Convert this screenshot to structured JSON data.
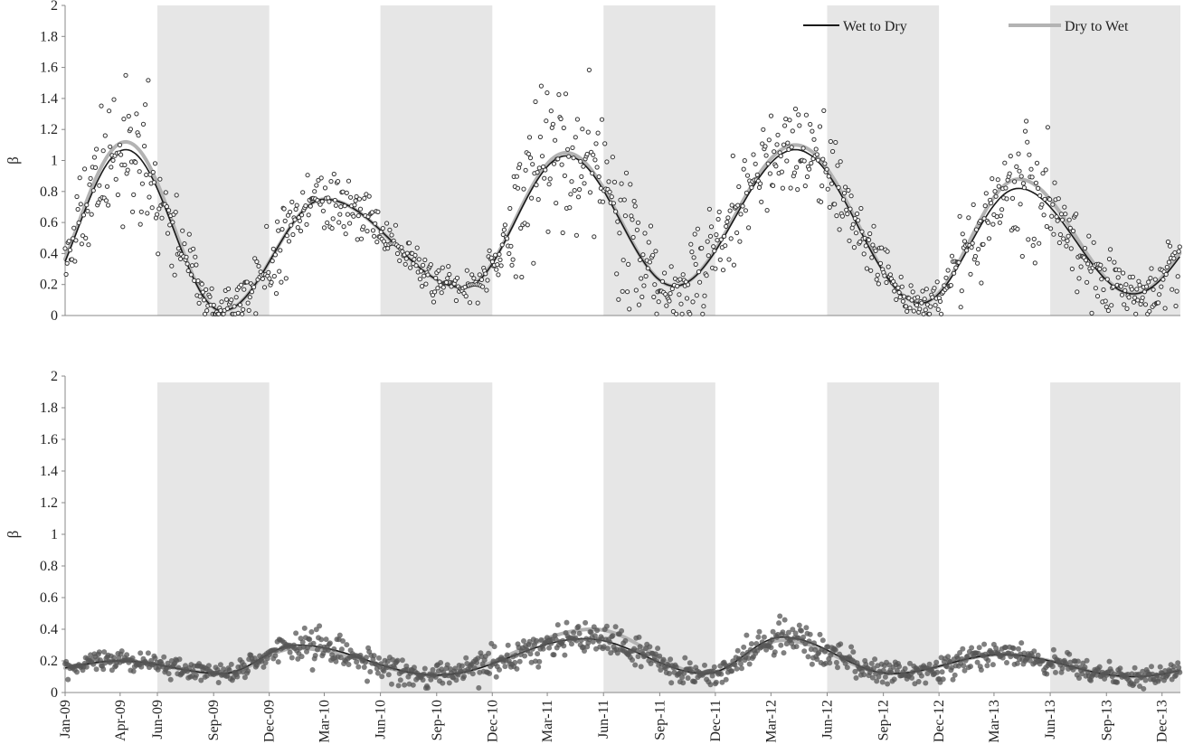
{
  "colors": {
    "background": "#ffffff",
    "shade": "#e6e6e6",
    "wet_to_dry": "#1a1a1a",
    "dry_to_wet": "#b3b3b3",
    "marker_top": "#333333",
    "marker_bottom": "#555555"
  },
  "legend": {
    "wet_to_dry": "Wet to Dry",
    "dry_to_wet": "Dry to Wet"
  },
  "chart_data": [
    {
      "type": "scatter",
      "panel": "top",
      "ylabel": "β",
      "ylim": [
        0,
        2
      ],
      "yticks": [
        "0",
        "0.2",
        "0.4",
        "0.6",
        "0.8",
        "1",
        "1.2",
        "1.4",
        "1.6",
        "1.8",
        "2"
      ],
      "x_range": [
        "2009-01-01",
        "2013-12-31"
      ],
      "marker": "hollow-circle",
      "shaded_periods": [
        [
          "2009-06-01",
          "2009-12-01"
        ],
        [
          "2010-06-01",
          "2010-12-01"
        ],
        [
          "2011-06-01",
          "2011-12-01"
        ],
        [
          "2012-06-01",
          "2012-12-01"
        ],
        [
          "2013-06-01",
          "2013-12-31"
        ]
      ],
      "season_cycles": [
        {
          "peak_date": "2009-04-10",
          "peak": 1.07,
          "trough_date": "2009-09-15",
          "trough": 0.03,
          "dry_peak_date": "2009-04-10",
          "dry_peak": 1.12
        },
        {
          "peak_date": "2010-03-01",
          "peak": 0.75,
          "trough_date": "2010-10-15",
          "trough": 0.18,
          "dry_peak_date": "2010-03-01",
          "dry_peak": 0.75
        },
        {
          "peak_date": "2011-04-01",
          "peak": 1.03,
          "trough_date": "2011-09-25",
          "trough": 0.19,
          "dry_peak_date": "2011-04-01",
          "dry_peak": 1.05
        },
        {
          "peak_date": "2012-04-10",
          "peak": 1.07,
          "trough_date": "2012-11-01",
          "trough": 0.08,
          "dry_peak_date": "2012-04-10",
          "dry_peak": 1.1
        },
        {
          "peak_date": "2013-04-10",
          "peak": 0.82,
          "trough_date": "2013-10-15",
          "trough": 0.14,
          "dry_peak_date": "2013-04-10",
          "dry_peak": 0.88
        }
      ],
      "scatter_noise": [
        0.42,
        0.22,
        0.55,
        0.3,
        0.45
      ],
      "series": [
        {
          "name": "Wet to Dry",
          "style": "line",
          "color": "#1a1a1a"
        },
        {
          "name": "Dry to Wet",
          "style": "line",
          "color": "#b3b3b3"
        }
      ]
    },
    {
      "type": "scatter",
      "panel": "bottom",
      "ylabel": "β",
      "ylim": [
        0,
        2
      ],
      "yticks": [
        "0",
        "0.2",
        "0.4",
        "0.6",
        "0.8",
        "1",
        "1.2",
        "1.4",
        "1.6",
        "1.8",
        "2"
      ],
      "x_range": [
        "2009-01-01",
        "2013-12-31"
      ],
      "xticks": [
        "Jan-09",
        "Apr-09",
        "Jun-09",
        "Sep-09",
        "Dec-09",
        "Mar-10",
        "Jun-10",
        "Sep-10",
        "Dec-10",
        "Mar-11",
        "Jun-11",
        "Sep-11",
        "Dec-11",
        "Mar-12",
        "Jun-12",
        "Sep-12",
        "Dec-12",
        "Mar-13",
        "Jun-13",
        "Sep-13",
        "Dec-13"
      ],
      "xtick_dates": [
        "2009-01-01",
        "2009-04-01",
        "2009-06-01",
        "2009-09-01",
        "2009-12-01",
        "2010-03-01",
        "2010-06-01",
        "2010-09-01",
        "2010-12-01",
        "2011-03-01",
        "2011-06-01",
        "2011-09-01",
        "2011-12-01",
        "2012-03-01",
        "2012-06-01",
        "2012-09-01",
        "2012-12-01",
        "2013-03-01",
        "2013-06-01",
        "2013-09-01",
        "2013-12-01"
      ],
      "marker": "filled-circle",
      "shaded_periods": [
        [
          "2009-06-01",
          "2009-12-01"
        ],
        [
          "2010-06-01",
          "2010-12-01"
        ],
        [
          "2011-06-01",
          "2011-12-01"
        ],
        [
          "2012-06-01",
          "2012-12-01"
        ],
        [
          "2013-06-01",
          "2013-12-31"
        ]
      ],
      "season_cycles": [
        {
          "peak_date": "2009-04-01",
          "peak": 0.2,
          "trough_date": "2009-09-15",
          "trough": 0.12,
          "dry_peak_date": "2009-04-01",
          "dry_peak": 0.2
        },
        {
          "peak_date": "2010-01-15",
          "peak": 0.3,
          "trough_date": "2010-09-01",
          "trough": 0.11,
          "dry_peak_date": "2010-01-15",
          "dry_peak": 0.28
        },
        {
          "peak_date": "2011-05-01",
          "peak": 0.34,
          "trough_date": "2011-11-15",
          "trough": 0.12,
          "dry_peak_date": "2011-05-15",
          "dry_peak": 0.4
        },
        {
          "peak_date": "2012-03-20",
          "peak": 0.35,
          "trough_date": "2012-09-15",
          "trough": 0.12,
          "dry_peak_date": "2012-03-20",
          "dry_peak": 0.33
        },
        {
          "peak_date": "2013-03-15",
          "peak": 0.24,
          "trough_date": "2013-10-15",
          "trough": 0.1,
          "dry_peak_date": "2013-03-15",
          "dry_peak": 0.24
        }
      ],
      "scatter_noise": [
        0.14,
        0.22,
        0.18,
        0.2,
        0.16
      ],
      "series": [
        {
          "name": "Wet to Dry",
          "style": "line",
          "color": "#1a1a1a"
        },
        {
          "name": "Dry to Wet",
          "style": "line",
          "color": "#b3b3b3"
        }
      ]
    }
  ]
}
